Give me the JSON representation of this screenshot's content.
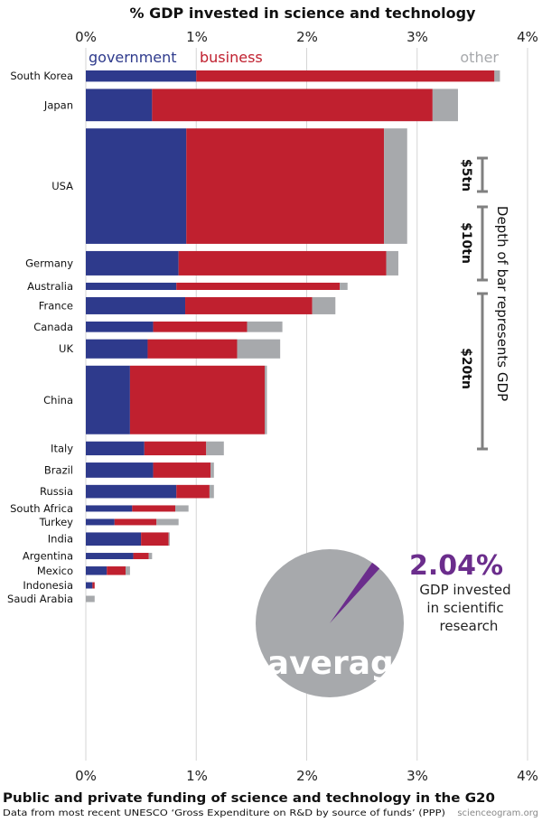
{
  "chart_data": {
    "type": "bar",
    "orientation": "horizontal",
    "stacked": true,
    "title": "% GDP invested in science and technology",
    "xlim": [
      0,
      4
    ],
    "x_ticks": [
      "0%",
      "1%",
      "2%",
      "3%",
      "4%"
    ],
    "grid": true,
    "series_names": [
      "government",
      "business",
      "other"
    ],
    "colors": {
      "government": "#2e3a8c",
      "business": "#c0202f",
      "other": "#a7a9ac",
      "accent": "#6b2d8c"
    },
    "countries": [
      {
        "name": "South Korea",
        "gov": 1.0,
        "bus": 2.7,
        "other": 0.05,
        "gdp": 1.7
      },
      {
        "name": "Japan",
        "gov": 0.6,
        "bus": 2.54,
        "other": 0.23,
        "gdp": 4.9
      },
      {
        "name": "USA",
        "gov": 0.91,
        "bus": 1.79,
        "other": 0.21,
        "gdp": 17.5
      },
      {
        "name": "Germany",
        "gov": 0.84,
        "bus": 1.88,
        "other": 0.11,
        "gdp": 3.7
      },
      {
        "name": "Australia",
        "gov": 0.82,
        "bus": 1.48,
        "other": 0.07,
        "gdp": 1.1
      },
      {
        "name": "France",
        "gov": 0.9,
        "bus": 1.15,
        "other": 0.21,
        "gdp": 2.6
      },
      {
        "name": "Canada",
        "gov": 0.61,
        "bus": 0.85,
        "other": 0.32,
        "gdp": 1.6
      },
      {
        "name": "UK",
        "gov": 0.56,
        "bus": 0.81,
        "other": 0.39,
        "gdp": 2.9
      },
      {
        "name": "China",
        "gov": 0.4,
        "bus": 1.22,
        "other": 0.02,
        "gdp": 10.4
      },
      {
        "name": "Italy",
        "gov": 0.53,
        "bus": 0.56,
        "other": 0.16,
        "gdp": 2.1
      },
      {
        "name": "Brazil",
        "gov": 0.61,
        "bus": 0.52,
        "other": 0.03,
        "gdp": 2.3
      },
      {
        "name": "Russia",
        "gov": 0.82,
        "bus": 0.3,
        "other": 0.04,
        "gdp": 2.0
      },
      {
        "name": "South Africa",
        "gov": 0.42,
        "bus": 0.39,
        "other": 0.12,
        "gdp": 0.35
      },
      {
        "name": "Turkey",
        "gov": 0.26,
        "bus": 0.38,
        "other": 0.2,
        "gdp": 0.8
      },
      {
        "name": "India",
        "gov": 0.5,
        "bus": 0.25,
        "other": 0.01,
        "gdp": 2.0
      },
      {
        "name": "Argentina",
        "gov": 0.43,
        "bus": 0.14,
        "other": 0.03,
        "gdp": 0.54
      },
      {
        "name": "Mexico",
        "gov": 0.19,
        "bus": 0.17,
        "other": 0.04,
        "gdp": 1.3
      },
      {
        "name": "Indonesia",
        "gov": 0.06,
        "bus": 0.02,
        "other": 0.0,
        "gdp": 0.89
      },
      {
        "name": "Saudi Arabia",
        "gov": 0.0,
        "bus": 0.0,
        "other": 0.08,
        "gdp": 0.75
      }
    ],
    "gdp_scale": {
      "title": "Depth of bar represents GDP",
      "labels": [
        {
          "text": "$5tn",
          "value": 5
        },
        {
          "text": "$10tn",
          "value": 10
        },
        {
          "text": "$20tn",
          "value": 20
        }
      ]
    },
    "average": {
      "value_text": "2.04%",
      "value": 2.04,
      "note_lines": [
        "GDP invested",
        "in scientific",
        "research"
      ],
      "label": "average"
    }
  },
  "footer": {
    "title": "Public and private funding of science and technology in the G20",
    "source": "Data from most recent UNESCO ‘Gross Expenditure on R&D by source of funds’ (PPP)",
    "credit": "scienceogram.org"
  }
}
